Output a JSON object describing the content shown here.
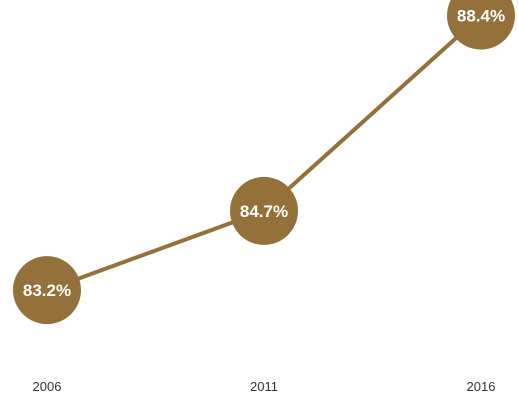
{
  "chart_data": {
    "type": "line",
    "title": "",
    "xlabel": "",
    "ylabel": "",
    "categories": [
      "2006",
      "2011",
      "2016"
    ],
    "series": [
      {
        "values": [
          83.2,
          84.7,
          88.4
        ],
        "labels": [
          "83.2%",
          "84.7%",
          "88.4%"
        ],
        "color": "#94703a"
      }
    ],
    "ylim": [
      81.1,
      88.6
    ],
    "grid": false,
    "legend": "none",
    "markers": "large filled circles with value labels"
  }
}
